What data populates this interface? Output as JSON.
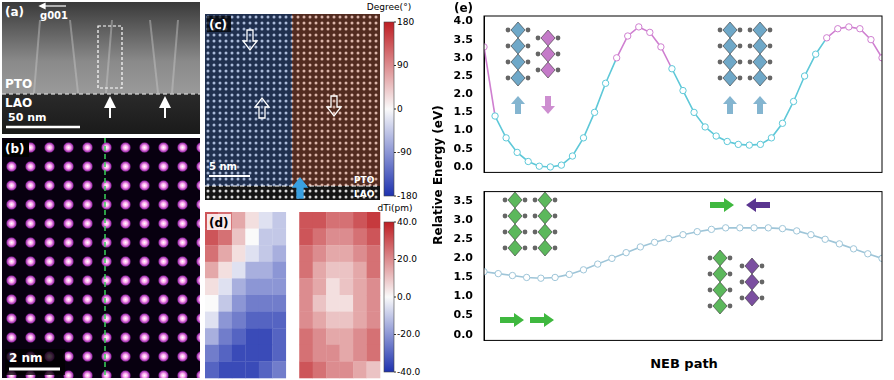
{
  "panels": {
    "a": {
      "label": "(a)",
      "vector": "g001",
      "layers": [
        "PTO",
        "LAO"
      ],
      "scale_bar": "50 nm"
    },
    "b": {
      "label": "(b)",
      "scale_bar": "2 nm"
    },
    "c": {
      "label": "(c)",
      "scale_bar": "5 nm",
      "layers": [
        "PTO",
        "LAO"
      ],
      "colorbar": {
        "title": "Degree(°)",
        "range": [
          -180,
          180
        ],
        "ticks": [
          180,
          90,
          0,
          -90,
          -180
        ]
      }
    },
    "d": {
      "label": "(d)",
      "colorbar": {
        "title": "dTi(pm)",
        "range": [
          -40,
          40
        ],
        "ticks": [
          {
            "value": 40,
            "label": "40.0"
          },
          {
            "value": 20,
            "label": "20.0"
          },
          {
            "value": 0,
            "label": "0.0"
          },
          {
            "value": -20,
            "label": "-20.0"
          },
          {
            "value": -40,
            "label": "-40.0"
          }
        ]
      },
      "cells": [
        [
          30,
          25,
          15,
          5,
          -5,
          -10,
          null,
          30,
          30,
          25,
          25,
          30,
          35
        ],
        [
          30,
          25,
          10,
          0,
          -10,
          -10,
          null,
          30,
          25,
          20,
          20,
          25,
          30
        ],
        [
          25,
          15,
          5,
          -5,
          -10,
          -15,
          null,
          25,
          20,
          15,
          15,
          20,
          25
        ],
        [
          15,
          5,
          -5,
          -15,
          -15,
          -20,
          null,
          25,
          15,
          10,
          10,
          15,
          25
        ],
        [
          5,
          -5,
          -15,
          -20,
          -20,
          -20,
          null,
          20,
          15,
          5,
          10,
          15,
          20
        ],
        [
          0,
          -10,
          -20,
          -25,
          -25,
          -25,
          null,
          20,
          10,
          5,
          5,
          15,
          20
        ],
        [
          -5,
          -20,
          -25,
          -30,
          -30,
          -30,
          null,
          20,
          15,
          10,
          10,
          15,
          20
        ],
        [
          -15,
          -25,
          -30,
          -35,
          -35,
          -30,
          null,
          25,
          20,
          15,
          15,
          20,
          25
        ],
        [
          -25,
          -30,
          -35,
          -35,
          -35,
          -30,
          null,
          25,
          20,
          20,
          15,
          20,
          25
        ],
        [
          -30,
          -35,
          -35,
          -35,
          -30,
          -25,
          null,
          30,
          25,
          20,
          20,
          15,
          10
        ]
      ]
    },
    "e": {
      "label": "(e)",
      "ylabel": "Relative Energy (eV)",
      "xlabel": "NEB path"
    }
  },
  "chart_data": [
    {
      "type": "line",
      "x": [
        0,
        1,
        2,
        3,
        4,
        5,
        6,
        7,
        8,
        9,
        10,
        11,
        12,
        13,
        14,
        15,
        16,
        17,
        18,
        19,
        20,
        21,
        22,
        23,
        24,
        25,
        26,
        27,
        28,
        29,
        30,
        31,
        32,
        33,
        34,
        35,
        36
      ],
      "values": [
        3.3,
        1.4,
        0.8,
        0.4,
        0.15,
        0.02,
        0.0,
        0.05,
        0.3,
        0.8,
        1.5,
        2.3,
        3.0,
        3.6,
        3.85,
        3.7,
        3.3,
        2.7,
        2.1,
        1.5,
        1.1,
        0.85,
        0.7,
        0.62,
        0.6,
        0.62,
        0.8,
        1.2,
        1.8,
        2.5,
        3.1,
        3.55,
        3.8,
        3.85,
        3.8,
        3.5,
        3.0
      ],
      "colors": [
        "#cf7fd0",
        "#5ec8d8",
        "#5ec8d8",
        "#5ec8d8",
        "#5ec8d8",
        "#5ec8d8",
        "#5ec8d8",
        "#5ec8d8",
        "#5ec8d8",
        "#5ec8d8",
        "#5ec8d8",
        "#5ec8d8",
        "#cf7fd0",
        "#cf7fd0",
        "#cf7fd0",
        "#cf7fd0",
        "#cf7fd0",
        "#5ec8d8",
        "#5ec8d8",
        "#5ec8d8",
        "#5ec8d8",
        "#5ec8d8",
        "#5ec8d8",
        "#5ec8d8",
        "#5ec8d8",
        "#5ec8d8",
        "#5ec8d8",
        "#5ec8d8",
        "#5ec8d8",
        "#5ec8d8",
        "#5ec8d8",
        "#cf7fd0",
        "#cf7fd0",
        "#cf7fd0",
        "#cf7fd0",
        "#cf7fd0",
        "#cf7fd0"
      ],
      "xlim": [
        0,
        36
      ],
      "ylim": [
        -0.15,
        4.15
      ],
      "yticks": [
        {
          "value": 0,
          "label": "0.0"
        },
        0.5,
        {
          "value": 1,
          "label": "1.0"
        },
        1.5,
        {
          "value": 2,
          "label": "2.0"
        },
        2.5,
        {
          "value": 3,
          "label": "3.0"
        },
        3.5,
        {
          "value": 4,
          "label": "4.0"
        }
      ],
      "tick_labels": "y",
      "grid": false,
      "marker": "circle"
    },
    {
      "type": "line",
      "x": [
        0,
        1,
        2,
        3,
        4,
        5,
        6,
        7,
        8,
        9,
        10,
        11,
        12,
        13,
        14,
        15,
        16,
        17,
        18,
        19,
        20,
        21,
        22,
        23,
        24,
        25,
        26,
        27,
        28
      ],
      "values": [
        1.65,
        1.6,
        1.55,
        1.5,
        1.48,
        1.5,
        1.58,
        1.7,
        1.85,
        2.0,
        2.15,
        2.3,
        2.42,
        2.52,
        2.62,
        2.7,
        2.76,
        2.8,
        2.8,
        2.8,
        2.8,
        2.78,
        2.72,
        2.62,
        2.5,
        2.38,
        2.25,
        2.12,
        2.0
      ],
      "color": "#9ec5d8",
      "xlim": [
        0,
        28
      ],
      "ylim": [
        -0.15,
        3.75
      ],
      "yticks": [
        {
          "value": 0,
          "label": "0.0"
        },
        0.5,
        {
          "value": 1,
          "label": "1.0"
        },
        1.5,
        {
          "value": 2,
          "label": "2.0"
        },
        2.5,
        {
          "value": 3,
          "label": "3.0"
        },
        3.5
      ],
      "tick_labels": "y",
      "grid": false,
      "marker": "circle"
    }
  ]
}
